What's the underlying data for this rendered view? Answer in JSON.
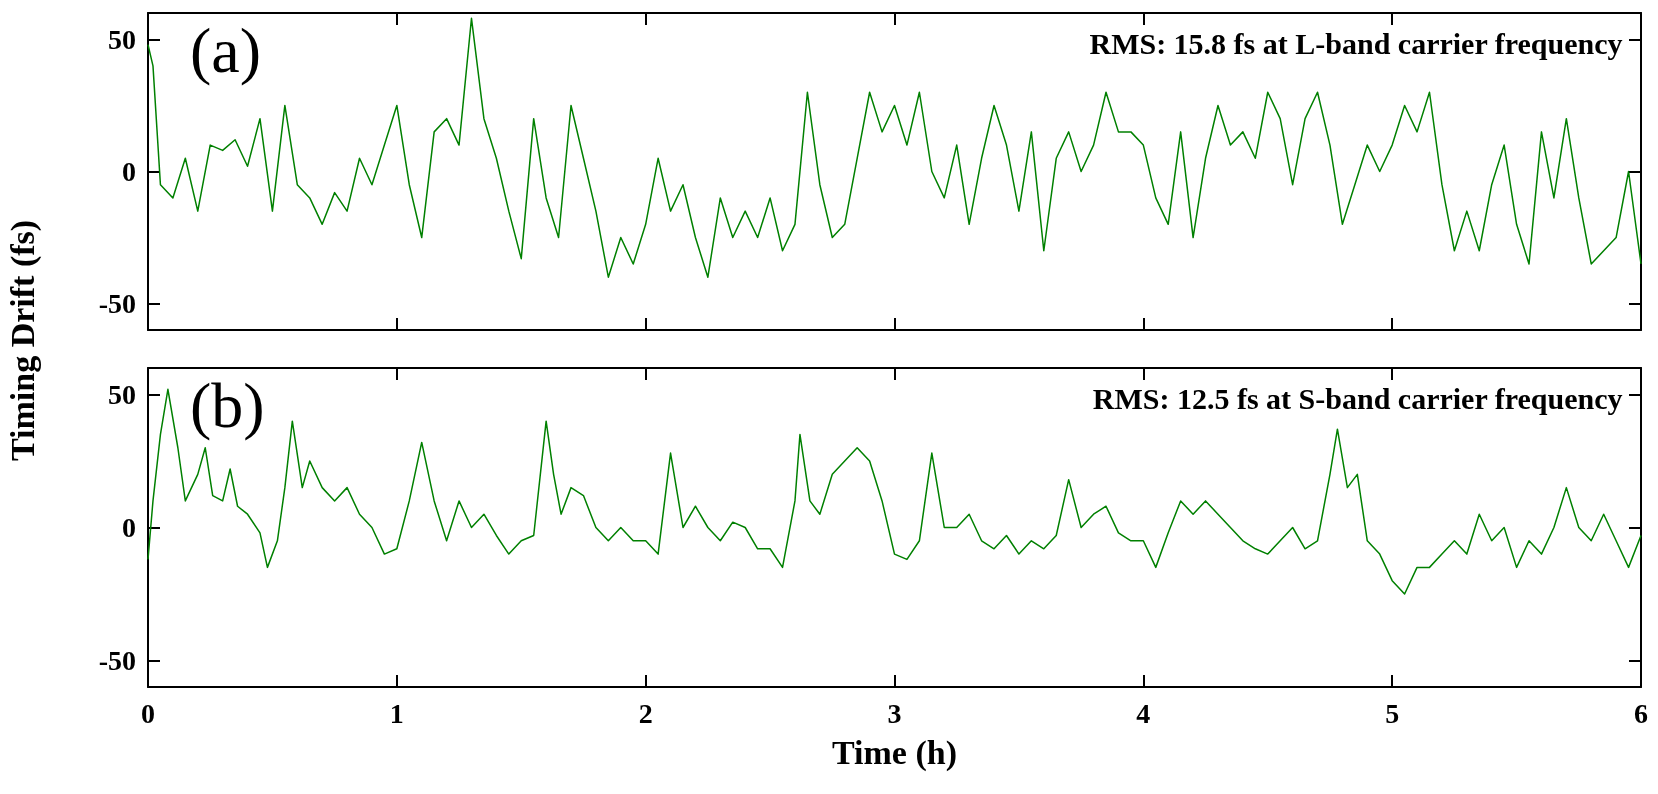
{
  "chart_data": [
    {
      "type": "line",
      "ylabel": "Timing Drift (fs)",
      "annotations": [
        "(a)",
        "RMS: 15.8 fs at L-band carrier frequency"
      ],
      "xlim": [
        0,
        6
      ],
      "xticks": [
        0,
        1,
        2,
        3,
        4,
        5,
        6
      ],
      "ylim": [
        -60,
        60
      ],
      "yticks": [
        -50,
        0,
        50
      ],
      "tick_labels": "y",
      "marker": "none",
      "line_style": "solid",
      "x": [
        0,
        0.02,
        0.05,
        0.1,
        0.15,
        0.2,
        0.25,
        0.3,
        0.35,
        0.4,
        0.45,
        0.5,
        0.55,
        0.6,
        0.65,
        0.7,
        0.75,
        0.8,
        0.85,
        0.9,
        0.95,
        1.0,
        1.05,
        1.1,
        1.15,
        1.2,
        1.25,
        1.3,
        1.35,
        1.4,
        1.45,
        1.5,
        1.55,
        1.6,
        1.65,
        1.7,
        1.75,
        1.8,
        1.85,
        1.9,
        1.95,
        2.0,
        2.05,
        2.1,
        2.15,
        2.2,
        2.25,
        2.3,
        2.35,
        2.4,
        2.45,
        2.5,
        2.55,
        2.6,
        2.65,
        2.7,
        2.75,
        2.8,
        2.85,
        2.9,
        2.95,
        3.0,
        3.05,
        3.1,
        3.15,
        3.2,
        3.25,
        3.3,
        3.35,
        3.4,
        3.45,
        3.5,
        3.55,
        3.6,
        3.65,
        3.7,
        3.75,
        3.8,
        3.85,
        3.9,
        3.95,
        4.0,
        4.05,
        4.1,
        4.15,
        4.2,
        4.25,
        4.3,
        4.35,
        4.4,
        4.45,
        4.5,
        4.55,
        4.6,
        4.65,
        4.7,
        4.75,
        4.8,
        4.85,
        4.9,
        4.95,
        5.0,
        5.05,
        5.1,
        5.15,
        5.2,
        5.25,
        5.3,
        5.35,
        5.4,
        5.45,
        5.5,
        5.55,
        5.6,
        5.65,
        5.7,
        5.75,
        5.8,
        5.85,
        5.9,
        5.95,
        6.0
      ],
      "series": [
        {
          "color": "#008000",
          "values": [
            48,
            40,
            -5,
            -10,
            5,
            -15,
            10,
            8,
            12,
            2,
            20,
            -15,
            25,
            -5,
            -10,
            -20,
            -8,
            -15,
            5,
            -5,
            10,
            25,
            -5,
            -25,
            15,
            20,
            10,
            58,
            20,
            5,
            -15,
            -33,
            20,
            -10,
            -25,
            25,
            5,
            -15,
            -40,
            -25,
            -35,
            -20,
            5,
            -15,
            -5,
            -25,
            -40,
            -10,
            -25,
            -15,
            -25,
            -10,
            -30,
            -20,
            30,
            -5,
            -25,
            -20,
            5,
            30,
            15,
            25,
            10,
            30,
            0,
            -10,
            10,
            -20,
            5,
            25,
            10,
            -15,
            15,
            -30,
            5,
            15,
            0,
            10,
            30,
            15,
            15,
            10,
            -10,
            -20,
            15,
            -25,
            5,
            25,
            10,
            15,
            5,
            30,
            20,
            -5,
            20,
            30,
            10,
            -20,
            -5,
            10,
            0,
            10,
            25,
            15,
            30,
            -5,
            -30,
            -15,
            -30,
            -5,
            10,
            -20,
            -35,
            15,
            -10,
            20,
            -10,
            -35,
            -30,
            -25,
            0,
            -35
          ]
        }
      ]
    },
    {
      "type": "line",
      "xlabel": "Time (h)",
      "annotations": [
        "(b)",
        "RMS: 12.5 fs at S-band carrier frequency"
      ],
      "xlim": [
        0,
        6
      ],
      "xticks": [
        0,
        1,
        2,
        3,
        4,
        5,
        6
      ],
      "ylim": [
        -60,
        60
      ],
      "yticks": [
        -50,
        0,
        50
      ],
      "marker": "none",
      "line_style": "solid",
      "x": [
        0,
        0.02,
        0.05,
        0.08,
        0.12,
        0.15,
        0.2,
        0.23,
        0.26,
        0.3,
        0.33,
        0.36,
        0.4,
        0.45,
        0.48,
        0.52,
        0.55,
        0.58,
        0.62,
        0.65,
        0.7,
        0.75,
        0.8,
        0.85,
        0.9,
        0.95,
        1.0,
        1.05,
        1.1,
        1.15,
        1.2,
        1.25,
        1.3,
        1.35,
        1.4,
        1.45,
        1.5,
        1.55,
        1.6,
        1.63,
        1.66,
        1.7,
        1.75,
        1.8,
        1.85,
        1.9,
        1.95,
        2.0,
        2.05,
        2.1,
        2.15,
        2.2,
        2.25,
        2.3,
        2.35,
        2.4,
        2.45,
        2.5,
        2.55,
        2.6,
        2.62,
        2.66,
        2.7,
        2.75,
        2.8,
        2.85,
        2.9,
        2.95,
        3.0,
        3.05,
        3.1,
        3.15,
        3.2,
        3.25,
        3.3,
        3.35,
        3.4,
        3.45,
        3.5,
        3.55,
        3.6,
        3.65,
        3.7,
        3.75,
        3.8,
        3.85,
        3.9,
        3.95,
        4.0,
        4.05,
        4.1,
        4.15,
        4.2,
        4.25,
        4.3,
        4.35,
        4.4,
        4.45,
        4.5,
        4.55,
        4.6,
        4.65,
        4.7,
        4.75,
        4.78,
        4.82,
        4.86,
        4.9,
        4.95,
        5.0,
        5.05,
        5.1,
        5.15,
        5.2,
        5.25,
        5.3,
        5.35,
        5.4,
        5.45,
        5.5,
        5.55,
        5.6,
        5.65,
        5.7,
        5.75,
        5.8,
        5.85,
        5.9,
        5.95,
        6.0
      ],
      "series": [
        {
          "color": "#008000",
          "values": [
            -12,
            10,
            35,
            52,
            30,
            10,
            20,
            30,
            12,
            10,
            22,
            8,
            5,
            -2,
            -15,
            -5,
            15,
            40,
            15,
            25,
            15,
            10,
            15,
            5,
            0,
            -10,
            -8,
            10,
            32,
            10,
            -5,
            10,
            0,
            5,
            -3,
            -10,
            -5,
            -3,
            40,
            20,
            5,
            15,
            12,
            0,
            -5,
            0,
            -5,
            -5,
            -10,
            28,
            0,
            8,
            0,
            -5,
            2,
            0,
            -8,
            -8,
            -15,
            10,
            35,
            10,
            5,
            20,
            25,
            30,
            25,
            10,
            -10,
            -12,
            -5,
            28,
            0,
            0,
            5,
            -5,
            -8,
            -3,
            -10,
            -5,
            -8,
            -3,
            18,
            0,
            5,
            8,
            -2,
            -5,
            -5,
            -15,
            -2,
            10,
            5,
            10,
            5,
            0,
            -5,
            -8,
            -10,
            -5,
            0,
            -8,
            -5,
            20,
            37,
            15,
            20,
            -5,
            -10,
            -20,
            -25,
            -15,
            -15,
            -10,
            -5,
            -10,
            5,
            -5,
            0,
            -15,
            -5,
            -10,
            0,
            15,
            0,
            -5,
            5,
            -5,
            -15,
            -3
          ]
        }
      ]
    }
  ]
}
